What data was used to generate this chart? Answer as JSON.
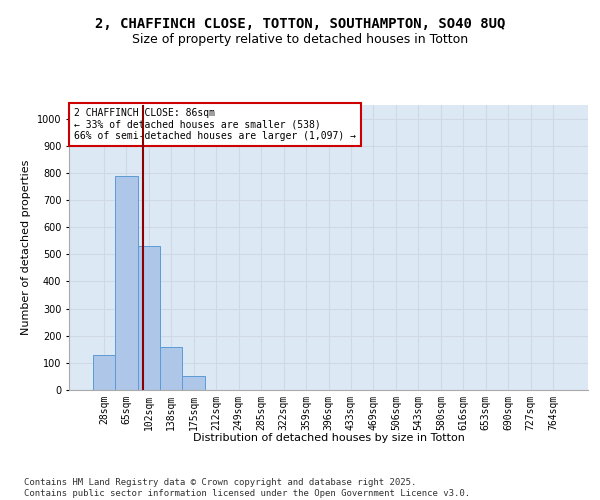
{
  "title_line1": "2, CHAFFINCH CLOSE, TOTTON, SOUTHAMPTON, SO40 8UQ",
  "title_line2": "Size of property relative to detached houses in Totton",
  "xlabel": "Distribution of detached houses by size in Totton",
  "ylabel": "Number of detached properties",
  "categories": [
    "28sqm",
    "65sqm",
    "102sqm",
    "138sqm",
    "175sqm",
    "212sqm",
    "249sqm",
    "285sqm",
    "322sqm",
    "359sqm",
    "396sqm",
    "433sqm",
    "469sqm",
    "506sqm",
    "543sqm",
    "580sqm",
    "616sqm",
    "653sqm",
    "690sqm",
    "727sqm",
    "764sqm"
  ],
  "values": [
    130,
    790,
    530,
    160,
    50,
    0,
    0,
    0,
    0,
    0,
    0,
    0,
    0,
    0,
    0,
    0,
    0,
    0,
    0,
    0,
    0
  ],
  "bar_color": "#aec6e8",
  "bar_edge_color": "#5b9bd5",
  "grid_color": "#d0d8e8",
  "background_color": "#dde8f5",
  "vline_color": "#8b0000",
  "annotation_box_text": "2 CHAFFINCH CLOSE: 86sqm\n← 33% of detached houses are smaller (538)\n66% of semi-detached houses are larger (1,097) →",
  "annotation_box_color": "#cc0000",
  "annotation_box_bg": "white",
  "ylim": [
    0,
    1050
  ],
  "yticks": [
    0,
    100,
    200,
    300,
    400,
    500,
    600,
    700,
    800,
    900,
    1000
  ],
  "footnote": "Contains HM Land Registry data © Crown copyright and database right 2025.\nContains public sector information licensed under the Open Government Licence v3.0.",
  "title_fontsize": 10,
  "subtitle_fontsize": 9,
  "axis_label_fontsize": 8,
  "tick_fontsize": 7,
  "footnote_fontsize": 6.5
}
